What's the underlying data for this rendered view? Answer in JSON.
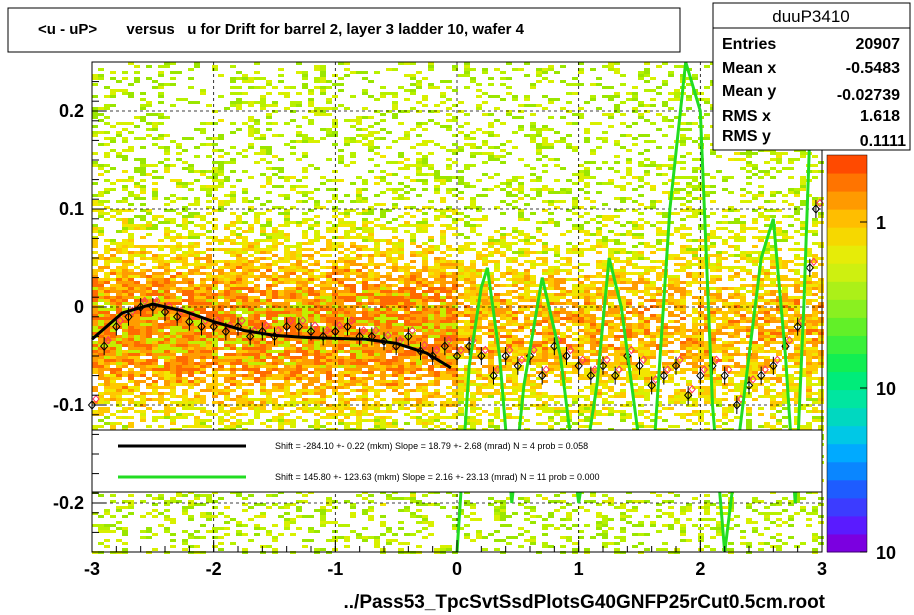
{
  "title": "<u - uP>       versus   u for Drift for barrel 2, layer 3 ladder 10, wafer 4",
  "stats": {
    "name": "duuP3410",
    "rows": [
      {
        "label": "Entries",
        "value": "20907"
      },
      {
        "label": "Mean x",
        "value": "-0.5483"
      },
      {
        "label": "Mean y",
        "value": "-0.02739"
      },
      {
        "label": "RMS x",
        "value": "1.618"
      },
      {
        "label": "RMS y",
        "value": "0.1111"
      }
    ]
  },
  "legend": [
    {
      "text": "Shift =  -284.10 +- 0.22 (mkm) Slope =    18.79 +- 2.68 (mrad)  N = 4 prob = 0.058",
      "color": "#000000"
    },
    {
      "text": "Shift =   145.80 +- 123.63 (mkm) Slope =     2.16 +- 23.13 (mrad)  N = 11 prob = 0.000",
      "color": "#22dd22"
    }
  ],
  "footer": "../Pass53_TpcSvtSsdPlotsG40GNFP25rCut0.5cm.root",
  "palette": {
    "labels": [
      "1",
      "10",
      "10"
    ],
    "colors": [
      "#7b00e0",
      "#5a1bff",
      "#3c3cff",
      "#1e5cff",
      "#0a86ff",
      "#00aaff",
      "#00c8e6",
      "#00d8c0",
      "#00e6a0",
      "#00ec7a",
      "#12ee52",
      "#3af03a",
      "#62f028",
      "#8af020",
      "#acf018",
      "#cef010",
      "#e6ec08",
      "#f6d800",
      "#ffbe00",
      "#ff9a00",
      "#ff7400",
      "#ff4a00"
    ]
  },
  "chart_data": {
    "type": "scatter",
    "xlabel": "",
    "ylabel": "",
    "xlim": [
      -3,
      3
    ],
    "ylim": [
      -0.25,
      0.25
    ],
    "x_ticks": [
      -3,
      -2,
      -1,
      0,
      1,
      2,
      3
    ],
    "x_tick_labels": [
      "-3",
      "-2",
      "-1",
      "0",
      "1",
      "2",
      "3"
    ],
    "y_ticks": [
      -0.2,
      -0.1,
      0,
      0.1,
      0.2
    ],
    "y_tick_labels": [
      "-0.2",
      "-0.1",
      "0",
      "0.1",
      "0.2"
    ],
    "grid": true,
    "profile_points": [
      {
        "x": -3.0,
        "y": -0.1
      },
      {
        "x": -2.9,
        "y": -0.04
      },
      {
        "x": -2.8,
        "y": -0.02
      },
      {
        "x": -2.7,
        "y": -0.01
      },
      {
        "x": -2.6,
        "y": 0.0
      },
      {
        "x": -2.5,
        "y": 0.0
      },
      {
        "x": -2.4,
        "y": -0.005
      },
      {
        "x": -2.3,
        "y": -0.01
      },
      {
        "x": -2.2,
        "y": -0.015
      },
      {
        "x": -2.1,
        "y": -0.02
      },
      {
        "x": -2.0,
        "y": -0.02
      },
      {
        "x": -1.9,
        "y": -0.025
      },
      {
        "x": -1.8,
        "y": -0.02
      },
      {
        "x": -1.7,
        "y": -0.03
      },
      {
        "x": -1.6,
        "y": -0.025
      },
      {
        "x": -1.5,
        "y": -0.03
      },
      {
        "x": -1.4,
        "y": -0.02
      },
      {
        "x": -1.3,
        "y": -0.02
      },
      {
        "x": -1.2,
        "y": -0.025
      },
      {
        "x": -1.1,
        "y": -0.03
      },
      {
        "x": -1.0,
        "y": -0.025
      },
      {
        "x": -0.9,
        "y": -0.02
      },
      {
        "x": -0.8,
        "y": -0.03
      },
      {
        "x": -0.7,
        "y": -0.03
      },
      {
        "x": -0.6,
        "y": -0.035
      },
      {
        "x": -0.5,
        "y": -0.04
      },
      {
        "x": -0.4,
        "y": -0.03
      },
      {
        "x": -0.3,
        "y": -0.045
      },
      {
        "x": -0.2,
        "y": -0.05
      },
      {
        "x": -0.1,
        "y": -0.04
      },
      {
        "x": 0.0,
        "y": -0.05
      },
      {
        "x": 0.1,
        "y": -0.04
      },
      {
        "x": 0.2,
        "y": -0.05
      },
      {
        "x": 0.3,
        "y": -0.07
      },
      {
        "x": 0.4,
        "y": -0.05
      },
      {
        "x": 0.5,
        "y": -0.06
      },
      {
        "x": 0.6,
        "y": -0.05
      },
      {
        "x": 0.7,
        "y": -0.07
      },
      {
        "x": 0.8,
        "y": -0.04
      },
      {
        "x": 0.9,
        "y": -0.05
      },
      {
        "x": 1.0,
        "y": -0.06
      },
      {
        "x": 1.1,
        "y": -0.07
      },
      {
        "x": 1.2,
        "y": -0.06
      },
      {
        "x": 1.3,
        "y": -0.07
      },
      {
        "x": 1.4,
        "y": -0.05
      },
      {
        "x": 1.5,
        "y": -0.06
      },
      {
        "x": 1.6,
        "y": -0.08
      },
      {
        "x": 1.7,
        "y": -0.07
      },
      {
        "x": 1.8,
        "y": -0.06
      },
      {
        "x": 1.9,
        "y": -0.09
      },
      {
        "x": 2.0,
        "y": -0.07
      },
      {
        "x": 2.1,
        "y": -0.06
      },
      {
        "x": 2.2,
        "y": -0.07
      },
      {
        "x": 2.3,
        "y": -0.1
      },
      {
        "x": 2.4,
        "y": -0.08
      },
      {
        "x": 2.5,
        "y": -0.07
      },
      {
        "x": 2.6,
        "y": -0.06
      },
      {
        "x": 2.7,
        "y": -0.04
      },
      {
        "x": 2.8,
        "y": -0.02
      },
      {
        "x": 2.9,
        "y": 0.04
      },
      {
        "x": 2.95,
        "y": 0.1
      }
    ],
    "fit_black": [
      {
        "x": -3.0,
        "y": -0.033
      },
      {
        "x": -2.75,
        "y": -0.006
      },
      {
        "x": -2.5,
        "y": 0.003
      },
      {
        "x": -2.25,
        "y": -0.004
      },
      {
        "x": -2.0,
        "y": -0.015
      },
      {
        "x": -1.75,
        "y": -0.024
      },
      {
        "x": -1.5,
        "y": -0.029
      },
      {
        "x": -1.25,
        "y": -0.031
      },
      {
        "x": -1.0,
        "y": -0.032
      },
      {
        "x": -0.75,
        "y": -0.033
      },
      {
        "x": -0.5,
        "y": -0.037
      },
      {
        "x": -0.25,
        "y": -0.047
      },
      {
        "x": -0.05,
        "y": -0.062
      }
    ],
    "fit_green": [
      {
        "x": 0.0,
        "y": -0.25
      },
      {
        "x": 0.1,
        "y": -0.06
      },
      {
        "x": 0.2,
        "y": 0.02
      },
      {
        "x": 0.25,
        "y": 0.04
      },
      {
        "x": 0.35,
        "y": -0.05
      },
      {
        "x": 0.45,
        "y": -0.2
      },
      {
        "x": 0.55,
        "y": -0.08
      },
      {
        "x": 0.7,
        "y": 0.03
      },
      {
        "x": 0.85,
        "y": -0.05
      },
      {
        "x": 1.0,
        "y": -0.2
      },
      {
        "x": 1.15,
        "y": -0.08
      },
      {
        "x": 1.25,
        "y": 0.05
      },
      {
        "x": 1.35,
        "y": 0.0
      },
      {
        "x": 1.5,
        "y": -0.14
      },
      {
        "x": 1.6,
        "y": -0.18
      },
      {
        "x": 1.75,
        "y": 0.1
      },
      {
        "x": 1.88,
        "y": 0.25
      },
      {
        "x": 2.0,
        "y": 0.2
      },
      {
        "x": 2.1,
        "y": -0.1
      },
      {
        "x": 2.2,
        "y": -0.25
      },
      {
        "x": 2.35,
        "y": -0.1
      },
      {
        "x": 2.5,
        "y": 0.05
      },
      {
        "x": 2.6,
        "y": 0.09
      },
      {
        "x": 2.7,
        "y": -0.05
      },
      {
        "x": 2.78,
        "y": -0.2
      },
      {
        "x": 2.85,
        "y": 0.0
      },
      {
        "x": 2.92,
        "y": 0.25
      }
    ]
  }
}
